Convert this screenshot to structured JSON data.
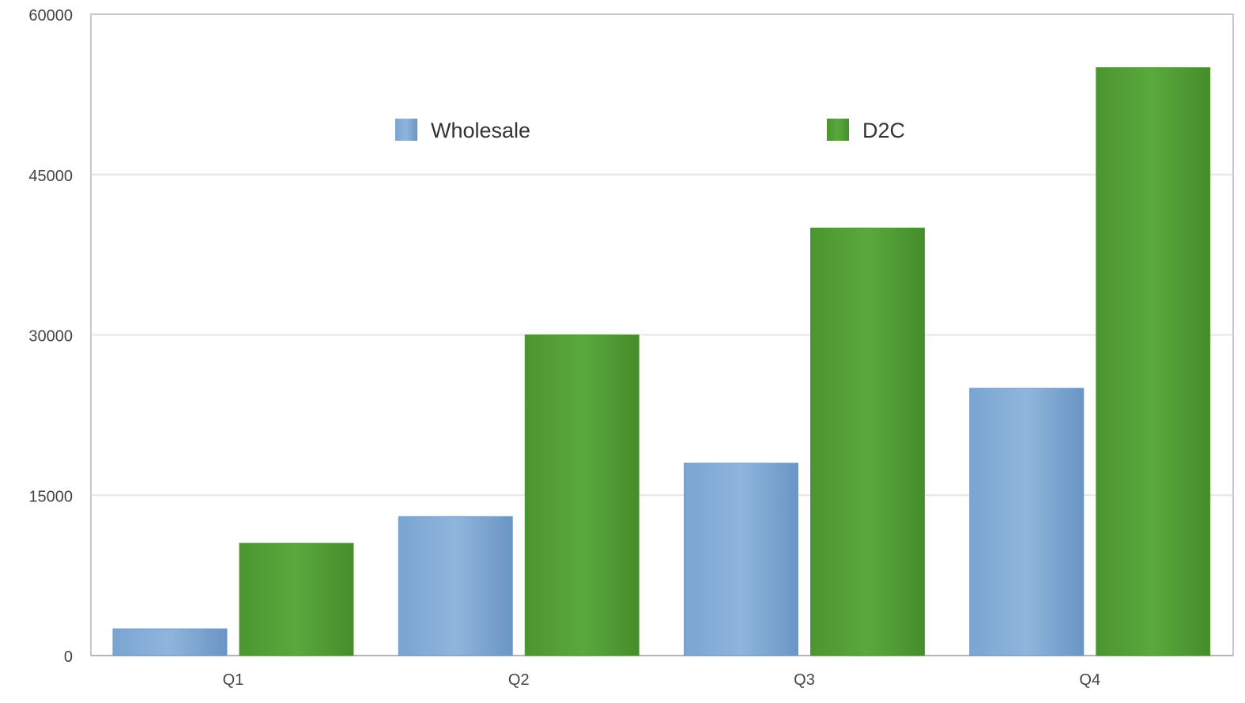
{
  "chart_data": {
    "type": "bar",
    "categories": [
      "Q1",
      "Q2",
      "Q3",
      "Q4"
    ],
    "series": [
      {
        "name": "Wholesale",
        "values": [
          2500,
          13000,
          18000,
          25000
        ],
        "color": "#6f9bc9"
      },
      {
        "name": "D2C",
        "values": [
          10500,
          30000,
          40000,
          55000
        ],
        "color": "#4f9a35"
      }
    ],
    "ylim": [
      0,
      60000
    ],
    "yticks": [
      0,
      15000,
      30000,
      45000,
      60000
    ],
    "ytick_labels": [
      "0",
      "15000",
      "30000",
      "45000",
      "60000"
    ],
    "grid": true,
    "legend_position": "top-center"
  }
}
